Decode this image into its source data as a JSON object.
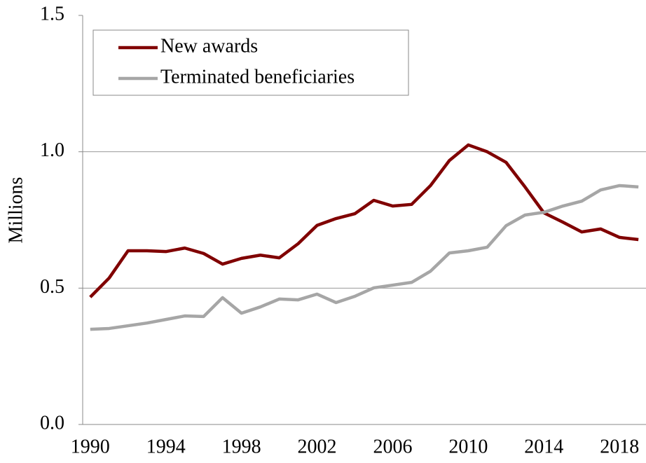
{
  "chart_data": {
    "type": "line",
    "y_label": "Millions",
    "x": [
      1990,
      1991,
      1992,
      1993,
      1994,
      1995,
      1996,
      1997,
      1998,
      1999,
      2000,
      2001,
      2002,
      2003,
      2004,
      2005,
      2006,
      2007,
      2008,
      2009,
      2010,
      2011,
      2012,
      2013,
      2014,
      2015,
      2016,
      2017,
      2018,
      2019
    ],
    "series": [
      {
        "name": "New awards",
        "color": "#800000",
        "values": [
          0.467,
          0.537,
          0.637,
          0.637,
          0.634,
          0.647,
          0.627,
          0.588,
          0.609,
          0.621,
          0.611,
          0.663,
          0.73,
          0.755,
          0.773,
          0.822,
          0.801,
          0.807,
          0.876,
          0.968,
          1.025,
          1.0,
          0.961,
          0.871,
          0.776,
          0.742,
          0.706,
          0.717,
          0.686,
          0.678
        ]
      },
      {
        "name": "Terminated beneficiaries",
        "color": "#a6a6a6",
        "values": [
          0.349,
          0.352,
          0.362,
          0.372,
          0.385,
          0.398,
          0.396,
          0.465,
          0.408,
          0.431,
          0.46,
          0.457,
          0.478,
          0.447,
          0.47,
          0.501,
          0.511,
          0.521,
          0.562,
          0.629,
          0.637,
          0.65,
          0.729,
          0.768,
          0.778,
          0.801,
          0.819,
          0.86,
          0.876,
          0.871
        ]
      }
    ],
    "xlim": [
      1989.6,
      2019.4
    ],
    "xticks": [
      1990,
      1994,
      1998,
      2002,
      2006,
      2010,
      2014,
      2018
    ],
    "ylim": [
      0,
      1.5
    ],
    "yticks": [
      {
        "value": 0,
        "label": "0.0"
      },
      0.5,
      {
        "value": 1,
        "label": "1.0"
      },
      1.5
    ],
    "grid": true,
    "legend": "upper left"
  }
}
